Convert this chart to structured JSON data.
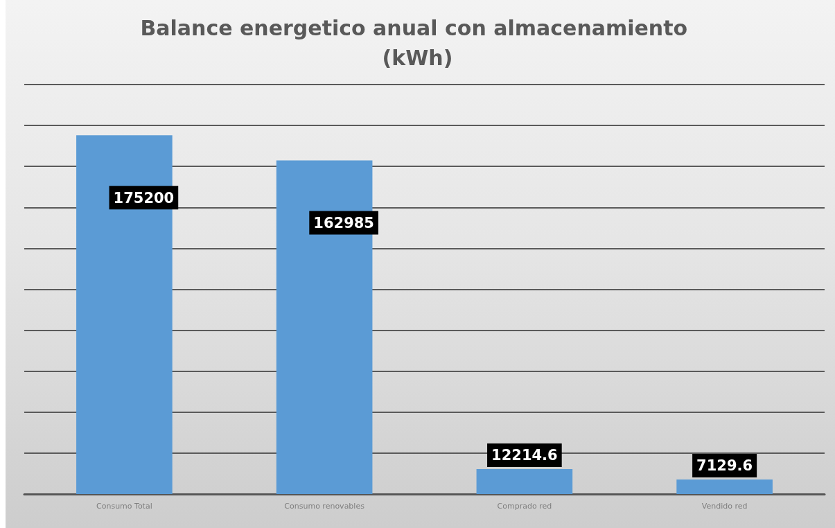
{
  "chart_data": {
    "type": "bar",
    "title": "Balance energetico anual con almacenamiento (kWh)",
    "categories": [
      "Consumo Total",
      "Consumo renovables",
      "Comprado red",
      "Vendido red"
    ],
    "values": [
      175200,
      162985,
      12214.6,
      7129.6
    ],
    "color": "#5b9bd5",
    "ylim": [
      0,
      200000
    ],
    "yticks": [
      {
        "value": 0,
        "label": null
      },
      {
        "value": 20000,
        "label": null
      },
      {
        "value": 40000,
        "label": null
      },
      {
        "value": 60000,
        "label": null
      },
      {
        "value": 80000,
        "label": null
      },
      {
        "value": 100000,
        "label": null
      },
      {
        "value": 120000,
        "label": null
      },
      {
        "value": 140000,
        "label": null
      },
      {
        "value": 160000,
        "label": null
      },
      {
        "value": 180000,
        "label": null
      },
      {
        "value": 200000,
        "label": null
      }
    ],
    "tick_labels": "x",
    "grid": "y",
    "data_labels": true
  }
}
